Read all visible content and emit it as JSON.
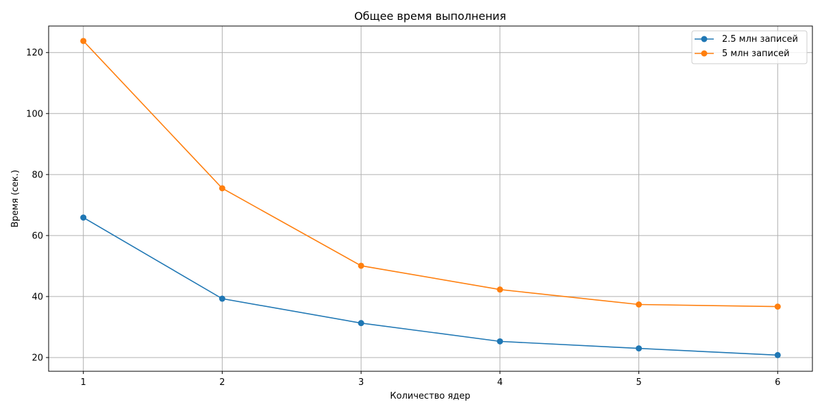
{
  "chart_data": {
    "type": "line",
    "title": "Общее время выполнения",
    "xlabel": "Количество ядер",
    "ylabel": "Время (сек.)",
    "x": [
      1,
      2,
      3,
      4,
      5,
      6
    ],
    "xlim": [
      0.75,
      6.25
    ],
    "ylim": [
      15.5,
      128.7
    ],
    "xticks": [
      1,
      2,
      3,
      4,
      5,
      6
    ],
    "yticks": [
      20,
      40,
      60,
      80,
      100,
      120
    ],
    "grid": true,
    "legend_position": "top-right",
    "marker": "circle",
    "series": [
      {
        "name": "2.5 млн записей",
        "color": "#1f77b4",
        "values": [
          65.9,
          39.3,
          31.3,
          25.3,
          23.0,
          20.8
        ]
      },
      {
        "name": "5 млн записей",
        "color": "#ff7f0e",
        "values": [
          123.8,
          75.5,
          50.1,
          42.3,
          37.4,
          36.7
        ]
      }
    ]
  }
}
